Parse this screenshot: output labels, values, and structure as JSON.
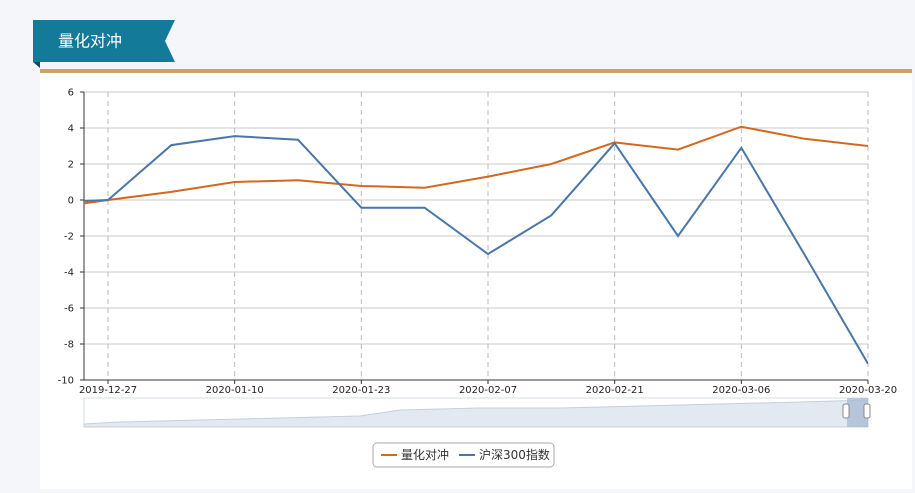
{
  "header": {
    "title": "量化对冲"
  },
  "chart_data": {
    "type": "line",
    "categories": [
      null,
      "2019-12-27",
      null,
      "2020-01-10",
      null,
      "2020-01-23",
      null,
      "2020-02-07",
      null,
      "2020-02-21",
      null,
      "2020-03-06",
      null,
      "2020-03-20"
    ],
    "series": [
      {
        "name": "量化对冲",
        "color": "#d2691e",
        "values": [
          -0.5,
          0,
          0.45,
          1.0,
          1.1,
          0.78,
          0.68,
          1.3,
          2.0,
          3.2,
          2.8,
          4.07,
          3.4,
          3.0
        ]
      },
      {
        "name": "沪深300指数",
        "color": "#4a76a8",
        "values": [
          -0.15,
          0,
          3.05,
          3.55,
          3.35,
          -0.43,
          -0.43,
          -3.0,
          -0.85,
          3.15,
          -2.0,
          2.9,
          -3.05,
          -9.1
        ]
      }
    ],
    "ylim": [
      -10,
      6
    ],
    "yticks": [
      -10,
      -8,
      -6,
      -4,
      -2,
      0,
      2,
      4,
      6
    ],
    "grid": true,
    "legend": "bottom"
  }
}
